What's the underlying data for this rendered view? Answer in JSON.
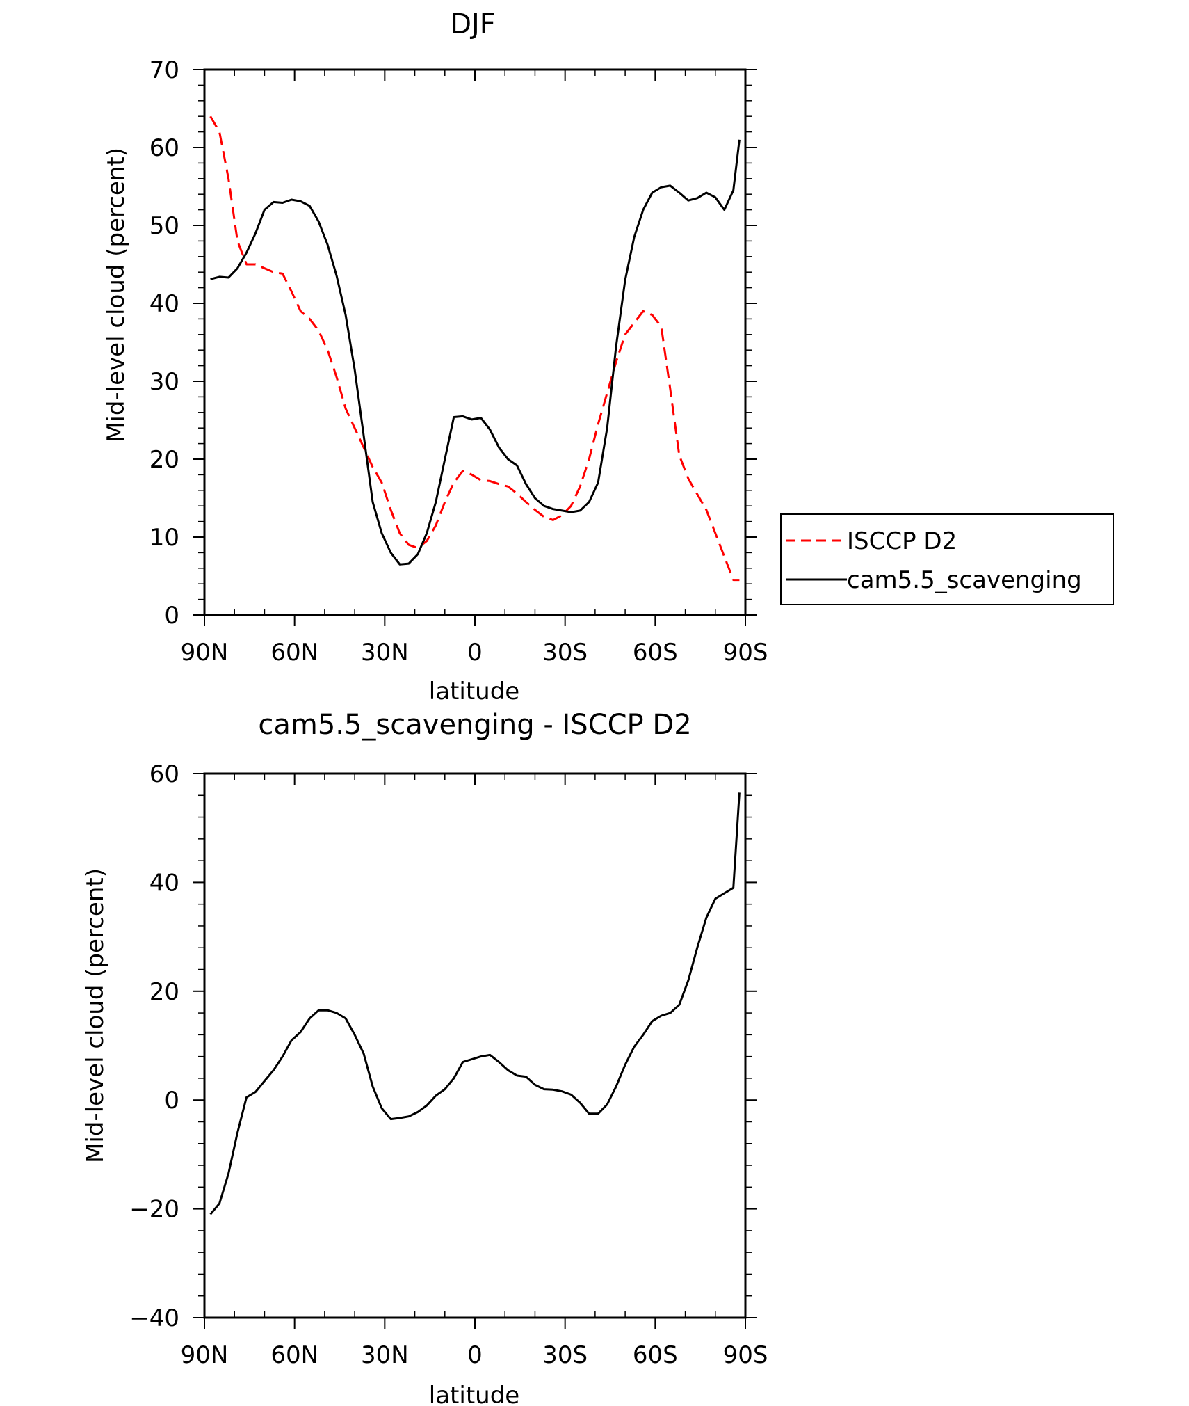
{
  "chart_data": [
    {
      "type": "line",
      "title": "DJF",
      "xlabel": "latitude",
      "ylabel": "Mid-level cloud (percent)",
      "xlim": [
        -90,
        90
      ],
      "ylim": [
        0,
        70
      ],
      "xticks": [
        -90,
        -60,
        -30,
        0,
        30,
        60,
        90
      ],
      "xtick_labels": [
        "90N",
        "60N",
        "30N",
        "0",
        "30S",
        "60S",
        "90S"
      ],
      "yticks": [
        0,
        10,
        20,
        30,
        40,
        50,
        60,
        70
      ],
      "ytick_labels": [
        "0",
        "10",
        "20",
        "30",
        "40",
        "50",
        "60",
        "70"
      ],
      "legend_position": "right",
      "series": [
        {
          "name": "ISCCP D2",
          "color": "#ff0000",
          "dash": "dashed",
          "x": [
            -88,
            -85,
            -82,
            -79,
            -76,
            -73,
            -70,
            -67,
            -64,
            -61,
            -58,
            -55,
            -52,
            -49,
            -46,
            -43,
            -40,
            -37,
            -34,
            -31,
            -28,
            -25,
            -22,
            -19,
            -16,
            -13,
            -10,
            -7,
            -4,
            -1,
            2,
            5,
            8,
            11,
            14,
            17,
            20,
            23,
            26,
            29,
            32,
            35,
            38,
            41,
            44,
            47,
            50,
            53,
            56,
            59,
            62,
            65,
            68,
            71,
            74,
            77,
            80,
            83,
            86,
            88
          ],
          "y": [
            64,
            62,
            56,
            48,
            45,
            45,
            44.5,
            44,
            43.8,
            41.5,
            39,
            38,
            36.5,
            34,
            30.5,
            26.5,
            24,
            21.5,
            19,
            17,
            13.5,
            10.5,
            9,
            8.6,
            9.5,
            11.5,
            14.5,
            17,
            18.5,
            18,
            17.3,
            17.2,
            16.8,
            16.5,
            15.6,
            14.5,
            13.5,
            12.6,
            12.2,
            12.8,
            14,
            16.5,
            20,
            24.5,
            28.5,
            32.5,
            36,
            37.5,
            39,
            38.5,
            37,
            29,
            20.5,
            17.5,
            15.5,
            13.5,
            10.5,
            7.5,
            4.5,
            4.5
          ]
        },
        {
          "name": "cam5.5_scavenging",
          "color": "#000000",
          "dash": "solid",
          "x": [
            -88,
            -85,
            -82,
            -79,
            -76,
            -73,
            -70,
            -67,
            -64,
            -61,
            -58,
            -55,
            -52,
            -49,
            -46,
            -43,
            -40,
            -37,
            -34,
            -31,
            -28,
            -25,
            -22,
            -19,
            -16,
            -13,
            -10,
            -7,
            -4,
            -1,
            2,
            5,
            8,
            11,
            14,
            17,
            20,
            23,
            26,
            29,
            32,
            35,
            38,
            41,
            44,
            47,
            50,
            53,
            56,
            59,
            62,
            65,
            68,
            71,
            74,
            77,
            80,
            83,
            86,
            88
          ],
          "y": [
            43.1,
            43.4,
            43.3,
            44.5,
            46.5,
            49,
            52,
            53,
            52.9,
            53.3,
            53.1,
            52.5,
            50.5,
            47.5,
            43.5,
            38.5,
            31.5,
            23,
            14.5,
            10.5,
            8,
            6.5,
            6.6,
            7.8,
            10.5,
            14.5,
            20,
            25.4,
            25.5,
            25.1,
            25.3,
            23.8,
            21.5,
            20,
            19.2,
            16.8,
            15,
            14,
            13.6,
            13.4,
            13.2,
            13.4,
            14.5,
            17,
            24,
            34.5,
            43,
            48.5,
            52,
            54.2,
            54.9,
            55.1,
            54.2,
            53.2,
            53.5,
            54.2,
            53.6,
            52,
            54.5,
            61
          ]
        }
      ]
    },
    {
      "type": "line",
      "title": "cam5.5_scavenging - ISCCP D2",
      "xlabel": "latitude",
      "ylabel": "Mid-level cloud (percent)",
      "xlim": [
        -90,
        90
      ],
      "ylim": [
        -40,
        60
      ],
      "xticks": [
        -90,
        -60,
        -30,
        0,
        30,
        60,
        90
      ],
      "xtick_labels": [
        "90N",
        "60N",
        "30N",
        "0",
        "30S",
        "60S",
        "90S"
      ],
      "yticks": [
        -40,
        -20,
        0,
        20,
        40,
        60
      ],
      "ytick_labels": [
        "−40",
        "−20",
        "0",
        "20",
        "40",
        "60"
      ],
      "series": [
        {
          "color": "#000000",
          "dash": "solid",
          "x": [
            -88,
            -85,
            -82,
            -79,
            -76,
            -73,
            -70,
            -67,
            -64,
            -61,
            -58,
            -55,
            -52,
            -49,
            -46,
            -43,
            -40,
            -37,
            -34,
            -31,
            -28,
            -25,
            -22,
            -19,
            -16,
            -13,
            -10,
            -7,
            -4,
            -1,
            2,
            5,
            8,
            11,
            14,
            17,
            20,
            23,
            26,
            29,
            32,
            35,
            38,
            41,
            44,
            47,
            50,
            53,
            56,
            59,
            62,
            65,
            68,
            71,
            74,
            77,
            80,
            83,
            86,
            88
          ],
          "y": [
            -21,
            -19,
            -13.5,
            -6,
            0.5,
            1.5,
            3.5,
            5.5,
            8,
            11,
            12.5,
            15,
            16.5,
            16.5,
            16,
            15,
            12,
            8.5,
            2.5,
            -1.5,
            -3.5,
            -3.3,
            -3,
            -2.2,
            -1,
            0.8,
            2,
            4,
            7,
            7.5,
            8,
            8.3,
            7,
            5.5,
            4.5,
            4.3,
            2.8,
            2,
            1.9,
            1.6,
            1,
            -0.5,
            -2.5,
            -2.5,
            -0.8,
            2.5,
            6.5,
            9.8,
            12,
            14.5,
            15.5,
            16,
            17.5,
            22,
            28,
            33.5,
            37,
            38,
            39,
            56.5
          ]
        }
      ]
    }
  ]
}
